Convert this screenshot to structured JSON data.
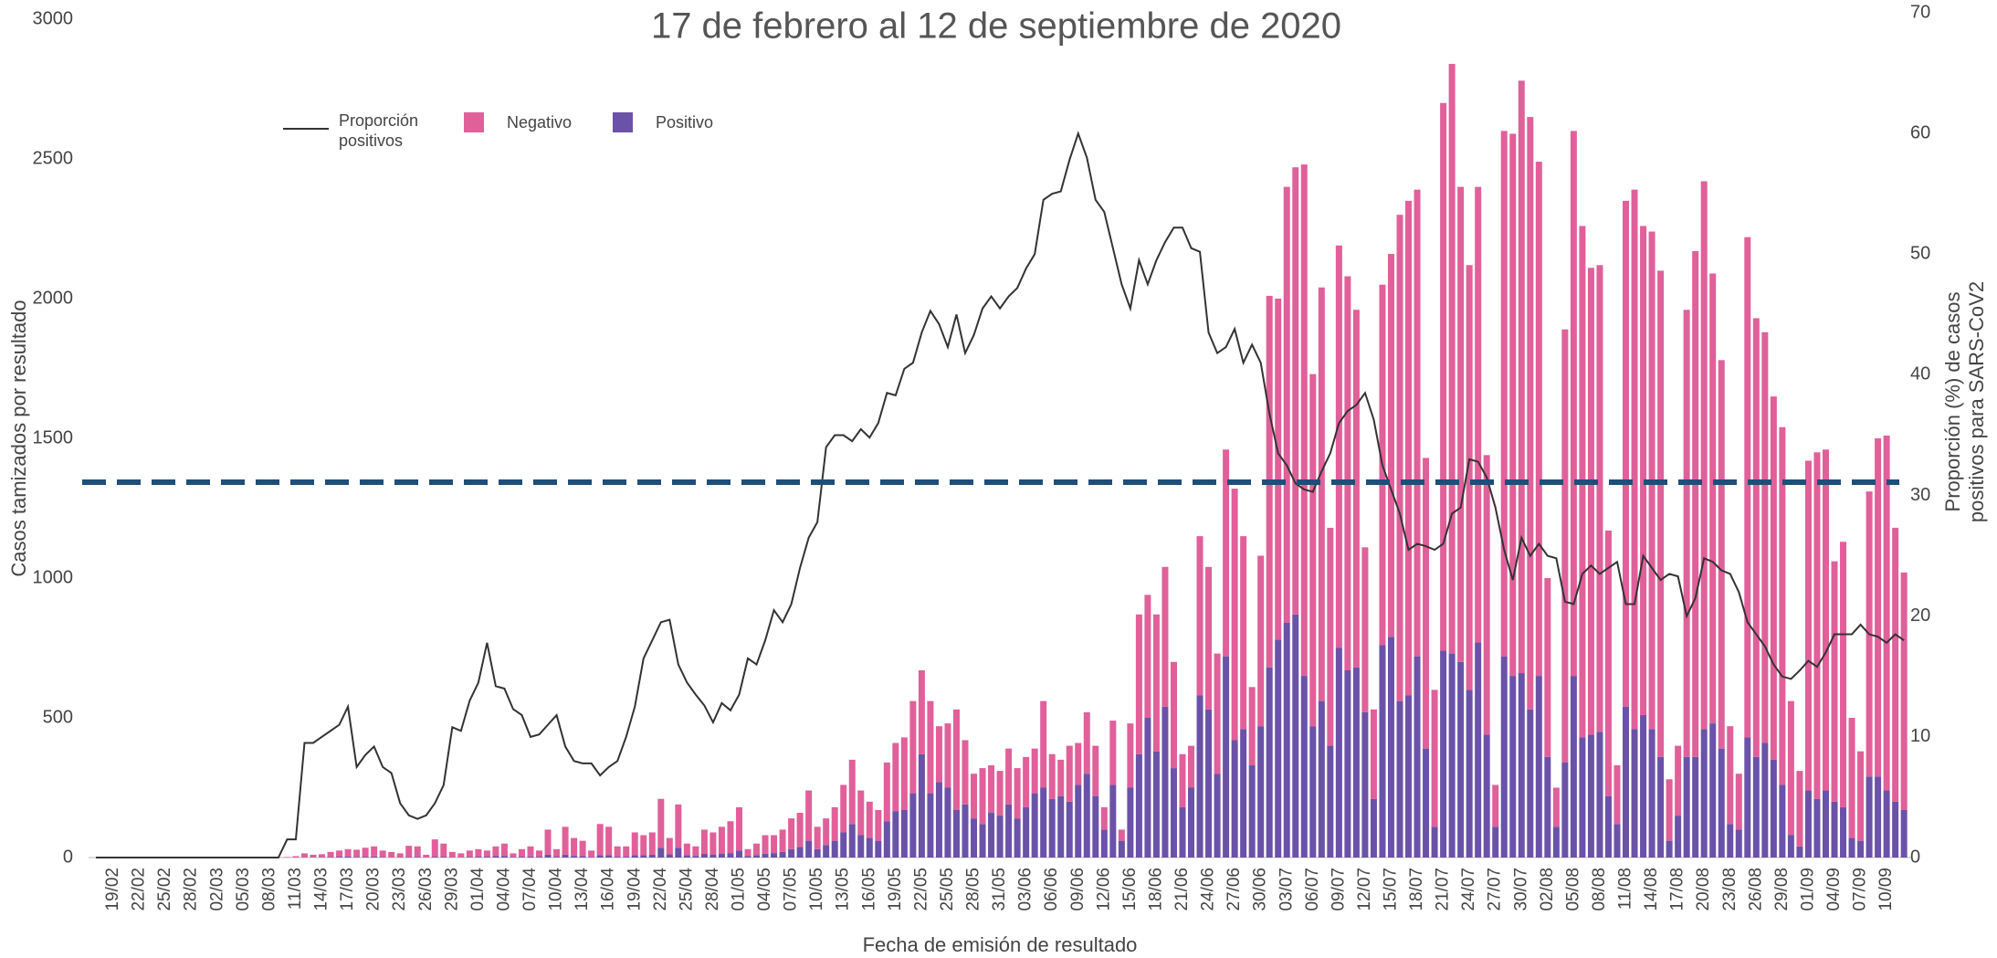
{
  "chart_data": {
    "type": "bar",
    "stacked": true,
    "title": "17 de febrero al 12 de septiembre de 2020",
    "xlabel": "Fecha de emisión de resultado",
    "ylabel": "Casos tamizados por resultado",
    "y2label": [
      "Proporción (%) de casos",
      "positivos para SARS-CoV2"
    ],
    "categories": [
      null,
      null,
      "19/02",
      null,
      null,
      "22/02",
      null,
      null,
      "25/02",
      null,
      null,
      "28/02",
      null,
      null,
      "02/03",
      null,
      null,
      "05/03",
      null,
      null,
      "08/03",
      null,
      null,
      "11/03",
      null,
      null,
      "14/03",
      null,
      null,
      "17/03",
      null,
      null,
      "20/03",
      null,
      null,
      "23/03",
      null,
      null,
      "26/03",
      null,
      null,
      "29/03",
      null,
      null,
      "01/04",
      null,
      null,
      "04/04",
      null,
      null,
      "07/04",
      null,
      null,
      "10/04",
      null,
      null,
      "13/04",
      null,
      null,
      "16/04",
      null,
      null,
      "19/04",
      null,
      null,
      "22/04",
      null,
      null,
      "25/04",
      null,
      null,
      "28/04",
      null,
      null,
      "01/05",
      null,
      null,
      "04/05",
      null,
      null,
      "07/05",
      null,
      null,
      "10/05",
      null,
      null,
      "13/05",
      null,
      null,
      "16/05",
      null,
      null,
      "19/05",
      null,
      null,
      "22/05",
      null,
      null,
      "25/05",
      null,
      null,
      "28/05",
      null,
      null,
      "31/05",
      null,
      null,
      "03/06",
      null,
      null,
      "06/06",
      null,
      null,
      "09/06",
      null,
      null,
      "12/06",
      null,
      null,
      "15/06",
      null,
      null,
      "18/06",
      null,
      null,
      "21/06",
      null,
      null,
      "24/06",
      null,
      null,
      "27/06",
      null,
      null,
      "30/06",
      null,
      null,
      "03/07",
      null,
      null,
      "06/07",
      null,
      null,
      "09/07",
      null,
      null,
      "12/07",
      null,
      null,
      "15/07",
      null,
      null,
      "18/07",
      null,
      null,
      "21/07",
      null,
      null,
      "24/07",
      null,
      null,
      "27/07",
      null,
      null,
      "30/07",
      null,
      null,
      "02/08",
      null,
      null,
      "05/08",
      null,
      null,
      "08/08",
      null,
      null,
      "11/08",
      null,
      null,
      "14/08",
      null,
      null,
      "17/08",
      null,
      null,
      "20/08",
      null,
      null,
      "23/08",
      null,
      null,
      "26/08",
      null,
      null,
      "29/08",
      null,
      null,
      "01/09",
      null,
      null,
      "04/09",
      null,
      null,
      "07/09",
      null,
      null,
      "10/09",
      null,
      null
    ],
    "series": [
      {
        "name": "Proporción positivos",
        "type": "line",
        "axis": "y2",
        "color": "#333333",
        "values": [
          0,
          0,
          0,
          0,
          0,
          0,
          0,
          0,
          0,
          0,
          0,
          0,
          0,
          0,
          0,
          0,
          0,
          0,
          0,
          0,
          0,
          0,
          1.5,
          1.5,
          9.5,
          9.5,
          10,
          10.5,
          11,
          12.5,
          7.5,
          8.5,
          9.2,
          7.5,
          7,
          4.5,
          3.5,
          3.2,
          3.5,
          4.5,
          6,
          10.8,
          10.5,
          13,
          14.5,
          17.8,
          14.2,
          14,
          12.3,
          11.8,
          10,
          10.2,
          11,
          11.8,
          9.2,
          8,
          7.8,
          7.8,
          6.8,
          7.5,
          8,
          10,
          12.5,
          16.5,
          18,
          19.5,
          19.7,
          16,
          14.5,
          13.5,
          12.6,
          11.2,
          12.8,
          12.2,
          13.5,
          16.5,
          16,
          18,
          20.5,
          19.5,
          21,
          24,
          26.5,
          27.8,
          34,
          35,
          35,
          34.5,
          35.5,
          34.8,
          36,
          38.5,
          38.3,
          40.5,
          41,
          43.5,
          45.3,
          44.2,
          42.3,
          45,
          41.8,
          43.3,
          45.5,
          46.5,
          45.5,
          46.5,
          47.2,
          48.8,
          50,
          54.5,
          55,
          55.2,
          57.8,
          60,
          58,
          54.5,
          53.5,
          50.5,
          47.5,
          45.5,
          49.5,
          47.5,
          49.5,
          51,
          52.2,
          52.2,
          50.5,
          50.2,
          43.5,
          41.8,
          42.3,
          43.8,
          41,
          42.5,
          41,
          36.8,
          33.5,
          32.5,
          31,
          30.5,
          30.3,
          32,
          33.5,
          36,
          37,
          37.5,
          38.5,
          36.3,
          32.5,
          30.5,
          28.5,
          25.5,
          26,
          25.8,
          25.5,
          26,
          28.5,
          29,
          33,
          32.8,
          31.5,
          29,
          25.5,
          23,
          26.5,
          25,
          26,
          25,
          24.8,
          21.2,
          21,
          23.5,
          24.2,
          23.5,
          24,
          24.5,
          21,
          21,
          25,
          24,
          23,
          23.5,
          23.3,
          20,
          21.5,
          24.8,
          24.5,
          23.8,
          23.5,
          22,
          19.5,
          18.5,
          17.5,
          16,
          15,
          14.8,
          15.5,
          16.3,
          15.8,
          17,
          18.5,
          18.5,
          18.5,
          19.3,
          18.5,
          18.3,
          17.8,
          18.5,
          18
        ]
      },
      {
        "name": "Negativo",
        "color": "#e0609a",
        "values": [
          0,
          0,
          0,
          0,
          0,
          0,
          0,
          0,
          0,
          0,
          0,
          0,
          0,
          0,
          0,
          0,
          0,
          0,
          0,
          0,
          0,
          0,
          2,
          5,
          14,
          9,
          11,
          18,
          22,
          26,
          26,
          32,
          36,
          23,
          19,
          14,
          40,
          38,
          10,
          62,
          47,
          19,
          14,
          23,
          27,
          22,
          35,
          44,
          13,
          27,
          36,
          22,
          90,
          27,
          100,
          64,
          55,
          23,
          112,
          102,
          37,
          37,
          82,
          72,
          80,
          175,
          58,
          155,
          42,
          34,
          87,
          79,
          97,
          114,
          155,
          25,
          42,
          66,
          64,
          80,
          110,
          122,
          180,
          80,
          95,
          120,
          170,
          230,
          160,
          130,
          110,
          210,
          245,
          260,
          330,
          300,
          330,
          200,
          230,
          360,
          230,
          160,
          200,
          170,
          160,
          200,
          180,
          180,
          160,
          310,
          160,
          130,
          200,
          150,
          220,
          180,
          80,
          230,
          40,
          230,
          500,
          440,
          490,
          500,
          380,
          190,
          150,
          570,
          510,
          430,
          740,
          900,
          690,
          280,
          610,
          1330,
          1220,
          1560,
          1600,
          1830,
          1260,
          1480,
          780,
          1440,
          1410,
          1280,
          590,
          320,
          1290,
          1370,
          1740,
          1770,
          1670,
          1040,
          490,
          1960,
          2110,
          1700,
          1520,
          1630,
          1000,
          150,
          1880,
          1940,
          2120,
          2120,
          1840,
          640,
          140,
          1550,
          1950,
          1830,
          1670,
          1670,
          950,
          210,
          1810,
          1930,
          1750,
          1780,
          1740,
          220,
          250,
          1600,
          1810,
          1960,
          1610,
          1390,
          350,
          200,
          1790,
          1570,
          1470,
          1300,
          1280,
          480,
          270,
          1180,
          1240,
          1220,
          860,
          950,
          430,
          320,
          1020,
          1210,
          1270,
          980,
          850
        ]
      },
      {
        "name": "Positivo",
        "color": "#6a52a8",
        "values": [
          0,
          0,
          0,
          0,
          0,
          0,
          0,
          0,
          0,
          0,
          0,
          0,
          0,
          0,
          0,
          0,
          0,
          0,
          0,
          0,
          0,
          0,
          0,
          0,
          1,
          1,
          1,
          2,
          3,
          4,
          2,
          3,
          4,
          2,
          1,
          1,
          2,
          2,
          0,
          3,
          3,
          1,
          1,
          2,
          3,
          3,
          5,
          6,
          2,
          3,
          4,
          3,
          10,
          3,
          10,
          6,
          5,
          2,
          8,
          8,
          3,
          3,
          8,
          8,
          10,
          35,
          12,
          35,
          8,
          6,
          13,
          11,
          13,
          16,
          25,
          5,
          8,
          14,
          16,
          20,
          30,
          38,
          60,
          30,
          45,
          60,
          90,
          120,
          80,
          70,
          60,
          130,
          165,
          170,
          230,
          370,
          230,
          270,
          250,
          170,
          190,
          140,
          120,
          160,
          150,
          190,
          140,
          180,
          230,
          250,
          210,
          220,
          200,
          260,
          300,
          220,
          100,
          260,
          60,
          250,
          370,
          500,
          380,
          540,
          320,
          180,
          250,
          580,
          530,
          300,
          720,
          420,
          460,
          330,
          470,
          680,
          780,
          840,
          870,
          650,
          470,
          560,
          400,
          750,
          670,
          680,
          520,
          210,
          760,
          790,
          560,
          580,
          720,
          390,
          110,
          740,
          730,
          700,
          600,
          770,
          440,
          110,
          720,
          650,
          660,
          530,
          650,
          360,
          110,
          340,
          650,
          430,
          440,
          450,
          220,
          120,
          540,
          460,
          510,
          460,
          360,
          60,
          150,
          360,
          360,
          460,
          480,
          390,
          120,
          100,
          430,
          360,
          410,
          350,
          260,
          80,
          40,
          240,
          210,
          240,
          200,
          180,
          70,
          60,
          290,
          290,
          240,
          200,
          170
        ]
      }
    ],
    "ylim": [
      0,
      3000
    ],
    "yticks": [
      0,
      500,
      1000,
      1500,
      2000,
      2500,
      3000
    ],
    "y2lim": [
      0,
      70
    ],
    "y2ticks": [
      0,
      10,
      20,
      30,
      40,
      50,
      60,
      70
    ],
    "reference_line": {
      "value": 31.1,
      "axis": "y2",
      "color": "#1f4e79",
      "dashed": true
    },
    "grid": false
  }
}
